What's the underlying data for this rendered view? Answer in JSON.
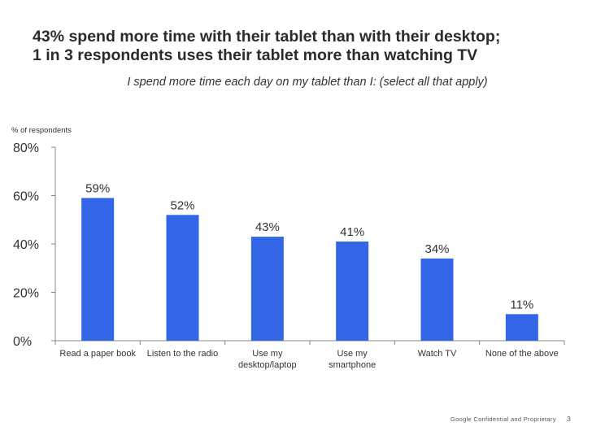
{
  "headline": {
    "line1": "43% spend more time with their tablet than with their desktop;",
    "line2": "1 in 3 respondents uses their tablet more than watching TV"
  },
  "footer": {
    "confidential": "Google Confidential and Proprietary",
    "page_number": "3"
  },
  "chart_data": {
    "type": "bar",
    "title": "I spend more time each day on my tablet than I: (select all that apply)",
    "ylabel": "% of respondents",
    "xlabel": "",
    "categories": [
      [
        "Read a paper book"
      ],
      [
        "Listen to the radio"
      ],
      [
        "Use my",
        "desktop/laptop"
      ],
      [
        "Use my",
        "smartphone"
      ],
      [
        "Watch TV"
      ],
      [
        "None of the above"
      ]
    ],
    "values": [
      59,
      52,
      43,
      41,
      34,
      11
    ],
    "data_labels": [
      "59%",
      "52%",
      "43%",
      "41%",
      "34%",
      "11%"
    ],
    "ylim": [
      0,
      80
    ],
    "yticks": [
      0,
      20,
      40,
      60,
      80
    ],
    "ytick_labels": [
      "0%",
      "20%",
      "40%",
      "60%",
      "80%"
    ],
    "grid": false,
    "legend": "none",
    "bar_color": "#3366e6",
    "axis_color": "#888888"
  }
}
